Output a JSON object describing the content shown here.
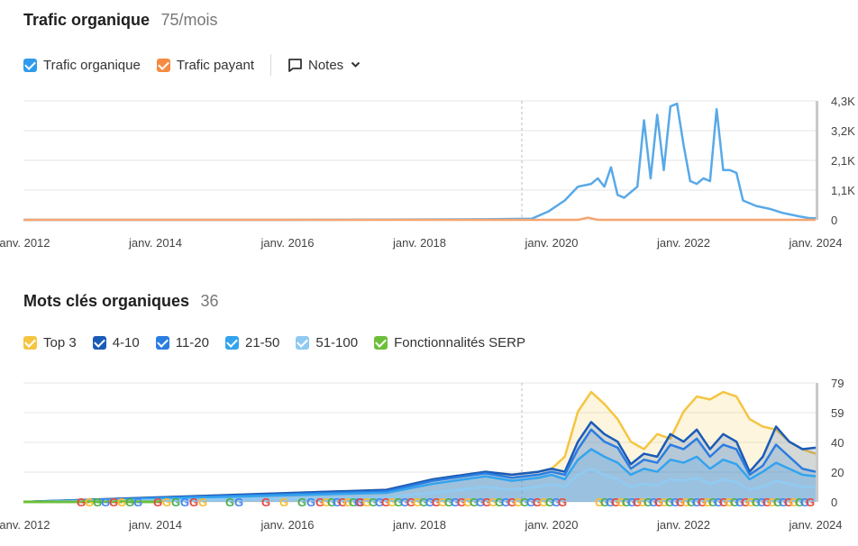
{
  "traffic": {
    "title": "Trafic organique",
    "value": "75/mois",
    "legend": [
      {
        "label": "Trafic organique",
        "color": "#2f9bea"
      },
      {
        "label": "Trafic payant",
        "color": "#f58a42"
      }
    ],
    "notes_label": "Notes"
  },
  "keywords": {
    "title": "Mots clés organiques",
    "value": "36",
    "legend": [
      {
        "label": "Top 3",
        "color": "#f5c542"
      },
      {
        "label": "4-10",
        "color": "#1a5bb8"
      },
      {
        "label": "11-20",
        "color": "#2a7de1"
      },
      {
        "label": "21-50",
        "color": "#33a3ee"
      },
      {
        "label": "51-100",
        "color": "#8fcaf3"
      },
      {
        "label": "Fonctionnalités SERP",
        "color": "#6cbf3a"
      }
    ]
  },
  "chart_data": [
    {
      "type": "line",
      "name": "traffic",
      "x_tick_labels": [
        "janv. 2012",
        "janv. 2014",
        "janv. 2016",
        "janv. 2018",
        "janv. 2020",
        "janv. 2022",
        "janv. 2024"
      ],
      "y_tick_labels": [
        "4,3K",
        "3,2K",
        "2,1K",
        "1,1K",
        "0"
      ],
      "ylim": [
        0,
        4300
      ],
      "xlim": [
        2012.0,
        2024.0
      ],
      "series": [
        {
          "name": "Trafic organique",
          "color": "#58a9e8",
          "x": [
            2012.0,
            2016.0,
            2019.0,
            2019.7,
            2019.95,
            2020.2,
            2020.4,
            2020.6,
            2020.7,
            2020.8,
            2020.9,
            2021.0,
            2021.1,
            2021.3,
            2021.4,
            2021.5,
            2021.6,
            2021.7,
            2021.8,
            2021.9,
            2022.0,
            2022.1,
            2022.2,
            2022.3,
            2022.4,
            2022.5,
            2022.6,
            2022.7,
            2022.8,
            2022.9,
            2023.1,
            2023.3,
            2023.5,
            2023.7,
            2023.9,
            2024.0
          ],
          "y": [
            0,
            0,
            20,
            40,
            300,
            700,
            1200,
            1300,
            1500,
            1200,
            1900,
            900,
            800,
            1200,
            3600,
            1500,
            3800,
            1800,
            4100,
            4200,
            2700,
            1400,
            1300,
            1500,
            1400,
            4000,
            1800,
            1800,
            1700,
            700,
            500,
            400,
            250,
            150,
            60,
            60
          ]
        },
        {
          "name": "Trafic payant",
          "color": "#f6a570",
          "x": [
            2012.0,
            2020.4,
            2020.55,
            2020.7,
            2024.0
          ],
          "y": [
            0,
            0,
            80,
            0,
            0
          ]
        }
      ]
    },
    {
      "type": "area",
      "name": "keywords",
      "x_tick_labels": [
        "janv. 2012",
        "janv. 2014",
        "janv. 2016",
        "janv. 2018",
        "janv. 2020",
        "janv. 2022",
        "janv. 2024"
      ],
      "y_tick_labels": [
        "79",
        "59",
        "40",
        "20",
        "0"
      ],
      "ylim": [
        0,
        79
      ],
      "xlim": [
        2012.0,
        2024.0
      ],
      "series": [
        {
          "name": "Top 3",
          "color": "#f5c542",
          "x": [
            2012.0,
            2017.5,
            2018.2,
            2019.0,
            2019.4,
            2019.8,
            2020.0,
            2020.2,
            2020.4,
            2020.6,
            2020.8,
            2021.0,
            2021.2,
            2021.4,
            2021.6,
            2021.8,
            2022.0,
            2022.2,
            2022.4,
            2022.6,
            2022.8,
            2023.0,
            2023.2,
            2023.4,
            2023.6,
            2023.8,
            2024.0
          ],
          "y": [
            0,
            8,
            15,
            20,
            18,
            20,
            22,
            30,
            60,
            73,
            65,
            55,
            40,
            35,
            45,
            42,
            60,
            70,
            68,
            73,
            70,
            55,
            50,
            48,
            40,
            35,
            32
          ]
        },
        {
          "name": "4-10",
          "color": "#1a5bb8",
          "x": [
            2012.0,
            2017.5,
            2018.2,
            2019.0,
            2019.4,
            2019.8,
            2020.0,
            2020.2,
            2020.4,
            2020.6,
            2020.8,
            2021.0,
            2021.2,
            2021.4,
            2021.6,
            2021.8,
            2022.0,
            2022.2,
            2022.4,
            2022.6,
            2022.8,
            2023.0,
            2023.2,
            2023.4,
            2023.6,
            2023.8,
            2024.0
          ],
          "y": [
            0,
            8,
            15,
            20,
            18,
            20,
            22,
            20,
            40,
            53,
            45,
            40,
            25,
            32,
            30,
            45,
            40,
            48,
            35,
            45,
            40,
            20,
            30,
            50,
            40,
            35,
            36
          ]
        },
        {
          "name": "11-20",
          "color": "#2a7de1",
          "x": [
            2012.0,
            2017.5,
            2018.2,
            2019.0,
            2019.4,
            2019.8,
            2020.0,
            2020.2,
            2020.4,
            2020.6,
            2020.8,
            2021.0,
            2021.2,
            2021.4,
            2021.6,
            2021.8,
            2022.0,
            2022.2,
            2022.4,
            2022.6,
            2022.8,
            2023.0,
            2023.2,
            2023.4,
            2023.6,
            2023.8,
            2024.0
          ],
          "y": [
            0,
            7,
            14,
            19,
            16,
            18,
            20,
            18,
            35,
            48,
            40,
            36,
            22,
            28,
            26,
            38,
            35,
            42,
            30,
            38,
            35,
            18,
            24,
            38,
            30,
            22,
            20
          ]
        },
        {
          "name": "21-50",
          "color": "#33a3ee",
          "x": [
            2012.0,
            2017.5,
            2018.2,
            2019.0,
            2019.4,
            2019.8,
            2020.0,
            2020.2,
            2020.4,
            2020.6,
            2020.8,
            2021.0,
            2021.2,
            2021.4,
            2021.6,
            2021.8,
            2022.0,
            2022.2,
            2022.4,
            2022.6,
            2022.8,
            2023.0,
            2023.2,
            2023.4,
            2023.6,
            2023.8,
            2024.0
          ],
          "y": [
            0,
            6,
            12,
            17,
            14,
            16,
            18,
            15,
            28,
            35,
            30,
            26,
            18,
            22,
            20,
            28,
            26,
            30,
            22,
            28,
            25,
            15,
            20,
            26,
            22,
            18,
            17
          ]
        },
        {
          "name": "51-100",
          "color": "#8fcaf3",
          "x": [
            2012.0,
            2017.5,
            2018.2,
            2019.0,
            2019.4,
            2019.8,
            2020.0,
            2020.2,
            2020.4,
            2020.6,
            2020.8,
            2021.0,
            2021.2,
            2021.4,
            2021.6,
            2021.8,
            2022.0,
            2022.2,
            2022.4,
            2022.6,
            2022.8,
            2023.0,
            2023.2,
            2023.4,
            2023.6,
            2023.8,
            2024.0
          ],
          "y": [
            0,
            3,
            6,
            10,
            8,
            10,
            12,
            10,
            18,
            22,
            18,
            15,
            10,
            12,
            11,
            15,
            14,
            16,
            12,
            15,
            13,
            8,
            10,
            14,
            12,
            10,
            10
          ]
        }
      ],
      "serp_markers": {
        "label": "Fonctionnalités SERP",
        "glyph": "G",
        "colors": [
          "#e8453c",
          "#f9bb2d",
          "#4cae4f",
          "#4285f4"
        ]
      }
    }
  ]
}
